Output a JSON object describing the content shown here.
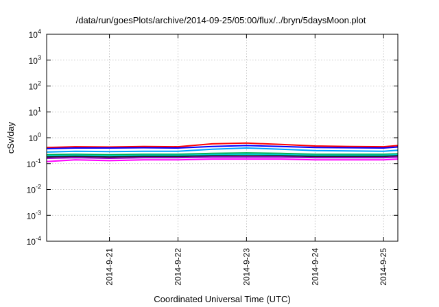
{
  "chart_data": {
    "type": "line",
    "title": "/data/run/goesPlots/archive/2014-09-25/05:00/flux/../bryn/5daysMoon.plot",
    "xlabel": "Coordinated Universal Time (UTC)",
    "ylabel": "cSv/day",
    "yscale": "log",
    "ylim": [
      0.0001,
      10000
    ],
    "xlim": [
      "2014-09-20T02:00",
      "2014-09-25T05:00"
    ],
    "grid": true,
    "y_ticks": [
      {
        "value": 0.0001,
        "base": "10",
        "exp": "-4"
      },
      {
        "value": 0.001,
        "base": "10",
        "exp": "-3"
      },
      {
        "value": 0.01,
        "base": "10",
        "exp": "-2"
      },
      {
        "value": 0.1,
        "base": "10",
        "exp": "-1"
      },
      {
        "value": 1,
        "base": "10",
        "exp": "0"
      },
      {
        "value": 10,
        "base": "10",
        "exp": "1"
      },
      {
        "value": 100,
        "base": "10",
        "exp": "2"
      },
      {
        "value": 1000,
        "base": "10",
        "exp": "3"
      },
      {
        "value": 10000,
        "base": "10",
        "exp": "4"
      }
    ],
    "x_ticks": [
      {
        "value": "2014-09-21T00:00",
        "label": "2014-9-21"
      },
      {
        "value": "2014-09-22T00:00",
        "label": "2014-9-22"
      },
      {
        "value": "2014-09-23T00:00",
        "label": "2014-9-23"
      },
      {
        "value": "2014-09-24T00:00",
        "label": "2014-9-24"
      },
      {
        "value": "2014-09-25T00:00",
        "label": "2014-9-25"
      }
    ],
    "series": [
      {
        "color": "#ff0000",
        "x": [
          "2014-09-20T02:00",
          "2014-09-20T12:00",
          "2014-09-21T00:00",
          "2014-09-21T12:00",
          "2014-09-22T00:00",
          "2014-09-22T12:00",
          "2014-09-23T00:00",
          "2014-09-23T12:00",
          "2014-09-24T00:00",
          "2014-09-24T12:00",
          "2014-09-25T00:00",
          "2014-09-25T05:00"
        ],
        "y": [
          0.42,
          0.45,
          0.44,
          0.46,
          0.45,
          0.58,
          0.62,
          0.55,
          0.48,
          0.46,
          0.45,
          0.5
        ]
      },
      {
        "color": "#0000ff",
        "x": [
          "2014-09-20T02:00",
          "2014-09-20T12:00",
          "2014-09-21T00:00",
          "2014-09-21T12:00",
          "2014-09-22T00:00",
          "2014-09-22T12:00",
          "2014-09-23T00:00",
          "2014-09-23T12:00",
          "2014-09-24T00:00",
          "2014-09-24T12:00",
          "2014-09-25T00:00",
          "2014-09-25T05:00"
        ],
        "y": [
          0.38,
          0.4,
          0.4,
          0.41,
          0.4,
          0.46,
          0.5,
          0.46,
          0.42,
          0.41,
          0.4,
          0.44
        ]
      },
      {
        "color": "#00a0ff",
        "x": [
          "2014-09-20T02:00",
          "2014-09-20T12:00",
          "2014-09-21T00:00",
          "2014-09-21T12:00",
          "2014-09-22T00:00",
          "2014-09-22T12:00",
          "2014-09-23T00:00",
          "2014-09-23T12:00",
          "2014-09-24T00:00",
          "2014-09-24T12:00",
          "2014-09-25T00:00",
          "2014-09-25T05:00"
        ],
        "y": [
          0.28,
          0.3,
          0.29,
          0.3,
          0.3,
          0.36,
          0.4,
          0.36,
          0.32,
          0.31,
          0.3,
          0.33
        ]
      },
      {
        "color": "#00b050",
        "x": [
          "2014-09-20T02:00",
          "2014-09-20T12:00",
          "2014-09-21T00:00",
          "2014-09-21T12:00",
          "2014-09-22T00:00",
          "2014-09-22T12:00",
          "2014-09-23T00:00",
          "2014-09-23T12:00",
          "2014-09-24T00:00",
          "2014-09-24T12:00",
          "2014-09-25T00:00",
          "2014-09-25T05:00"
        ],
        "y": [
          0.22,
          0.23,
          0.22,
          0.23,
          0.23,
          0.25,
          0.26,
          0.25,
          0.23,
          0.23,
          0.23,
          0.24
        ]
      },
      {
        "color": "#00d0d0",
        "x": [
          "2014-09-20T02:00",
          "2014-09-20T12:00",
          "2014-09-21T00:00",
          "2014-09-21T12:00",
          "2014-09-22T00:00",
          "2014-09-22T12:00",
          "2014-09-23T00:00",
          "2014-09-23T12:00",
          "2014-09-24T00:00",
          "2014-09-24T12:00",
          "2014-09-25T00:00",
          "2014-09-25T05:00"
        ],
        "y": [
          0.2,
          0.21,
          0.2,
          0.21,
          0.21,
          0.22,
          0.23,
          0.22,
          0.21,
          0.21,
          0.21,
          0.22
        ]
      },
      {
        "color": "#222222",
        "x": [
          "2014-09-20T02:00",
          "2014-09-20T12:00",
          "2014-09-21T00:00",
          "2014-09-21T12:00",
          "2014-09-22T00:00",
          "2014-09-22T12:00",
          "2014-09-23T00:00",
          "2014-09-23T12:00",
          "2014-09-24T00:00",
          "2014-09-24T12:00",
          "2014-09-25T00:00",
          "2014-09-25T05:00"
        ],
        "y": [
          0.18,
          0.19,
          0.18,
          0.19,
          0.19,
          0.2,
          0.2,
          0.2,
          0.19,
          0.19,
          0.19,
          0.2
        ]
      },
      {
        "color": "#9900cc",
        "x": [
          "2014-09-20T02:00",
          "2014-09-20T12:00",
          "2014-09-21T00:00",
          "2014-09-21T12:00",
          "2014-09-22T00:00",
          "2014-09-22T12:00",
          "2014-09-23T00:00",
          "2014-09-23T12:00",
          "2014-09-24T00:00",
          "2014-09-24T12:00",
          "2014-09-25T00:00",
          "2014-09-25T05:00"
        ],
        "y": [
          0.16,
          0.17,
          0.16,
          0.17,
          0.17,
          0.18,
          0.18,
          0.18,
          0.17,
          0.17,
          0.17,
          0.18
        ]
      },
      {
        "color": "#ff00ff",
        "x": [
          "2014-09-20T02:00",
          "2014-09-20T12:00",
          "2014-09-21T00:00",
          "2014-09-21T12:00",
          "2014-09-22T00:00",
          "2014-09-22T12:00",
          "2014-09-23T00:00",
          "2014-09-23T12:00",
          "2014-09-24T00:00",
          "2014-09-24T12:00",
          "2014-09-25T00:00",
          "2014-09-25T05:00"
        ],
        "y": [
          0.12,
          0.14,
          0.13,
          0.14,
          0.14,
          0.15,
          0.15,
          0.15,
          0.14,
          0.14,
          0.14,
          0.15
        ]
      }
    ]
  }
}
